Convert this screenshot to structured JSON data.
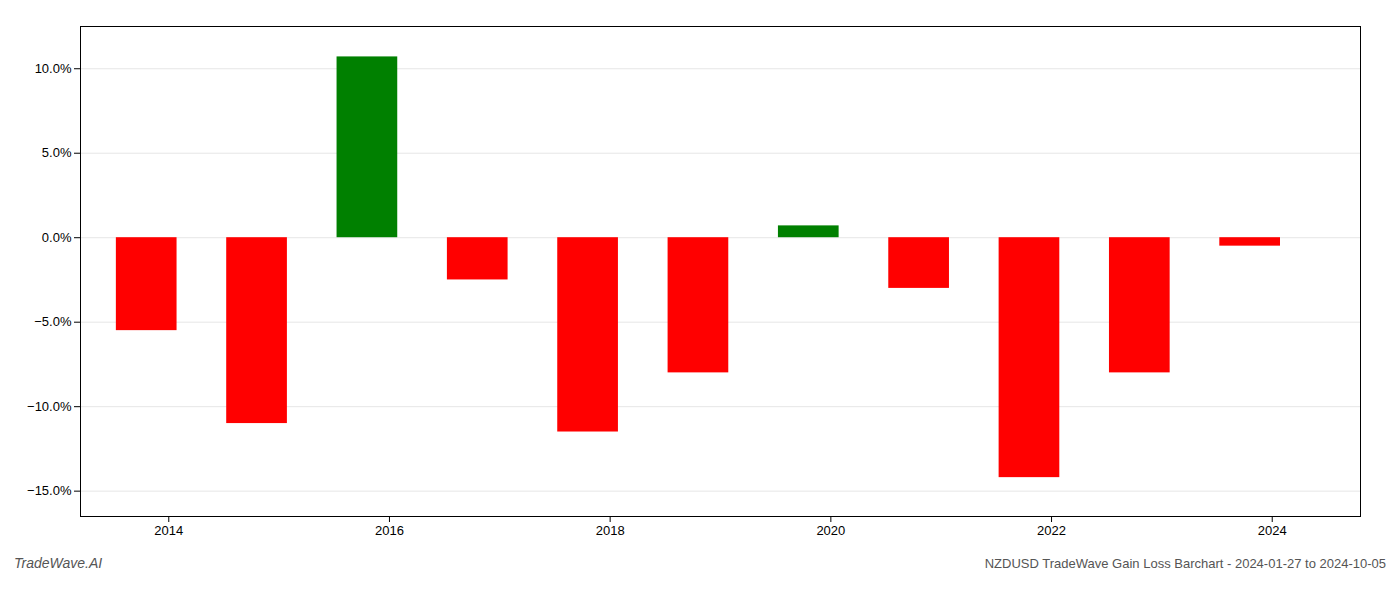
{
  "chart_data": {
    "type": "bar",
    "title": "NZDUSD TradeWave Gain Loss Barchart - 2024-01-27 to 2024-10-05",
    "annotations": [
      {
        "text": "TradeWave.AI"
      }
    ],
    "x": [
      2013.8,
      2014.8,
      2015.8,
      2016.8,
      2017.8,
      2018.8,
      2019.8,
      2020.8,
      2021.8,
      2022.8,
      2023.8
    ],
    "values": [
      -5.5,
      -11.0,
      10.7,
      -2.5,
      -11.5,
      -8.0,
      0.7,
      -3.0,
      -14.2,
      -8.0,
      -0.5
    ],
    "colors": [
      "#FF0000",
      "#FF0000",
      "#008000",
      "#FF0000",
      "#FF0000",
      "#FF0000",
      "#008000",
      "#FF0000",
      "#FF0000",
      "#FF0000",
      "#FF0000"
    ],
    "xlim": [
      2013.2,
      2024.8
    ],
    "xticks": [
      2014,
      2016,
      2018,
      2020,
      2022,
      2024
    ],
    "ylim": [
      -16.5,
      12.5
    ],
    "yticks": [
      {
        "value": -15.0,
        "label": "−15.0%"
      },
      {
        "value": -10.0,
        "label": "−10.0%"
      },
      {
        "value": -5.0,
        "label": "−5.0%"
      },
      {
        "value": 0.0,
        "label": "0.0%"
      },
      {
        "value": 5.0,
        "label": "5.0%"
      },
      {
        "value": 10.0,
        "label": "10.0%"
      }
    ],
    "grid": true
  }
}
